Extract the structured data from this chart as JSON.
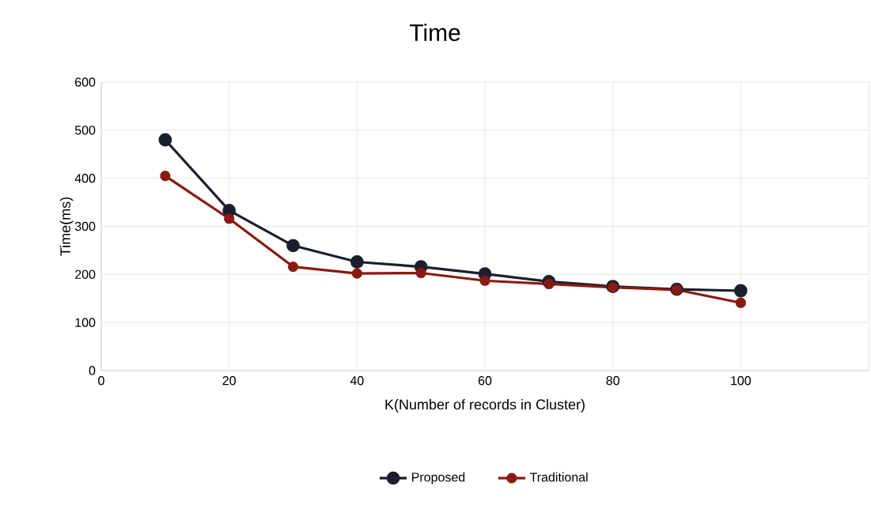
{
  "chart_data": {
    "type": "line",
    "title": "Time",
    "xlabel": "K(Number of records in Cluster)",
    "ylabel": "Time(ms)",
    "x": [
      10,
      20,
      30,
      40,
      50,
      60,
      70,
      80,
      90,
      100
    ],
    "series": [
      {
        "name": "Proposed",
        "color": "#1a1f2e",
        "values": [
          480,
          333,
          260,
          226,
          216,
          201,
          185,
          175,
          169,
          166
        ]
      },
      {
        "name": "Traditional",
        "color": "#8b1a10",
        "values": [
          405,
          316,
          216,
          202,
          203,
          187,
          180,
          173,
          168,
          141
        ]
      }
    ],
    "xlim": [
      0,
      120
    ],
    "xticks": [
      0,
      20,
      40,
      60,
      80,
      100,
      {
        "value": 120,
        "label": null
      }
    ],
    "ylim": [
      0,
      600
    ],
    "yticks": [
      0,
      100,
      200,
      300,
      400,
      500,
      600
    ],
    "grid": true,
    "legend": "bottom",
    "marker": "circle",
    "line_style": "solid"
  }
}
